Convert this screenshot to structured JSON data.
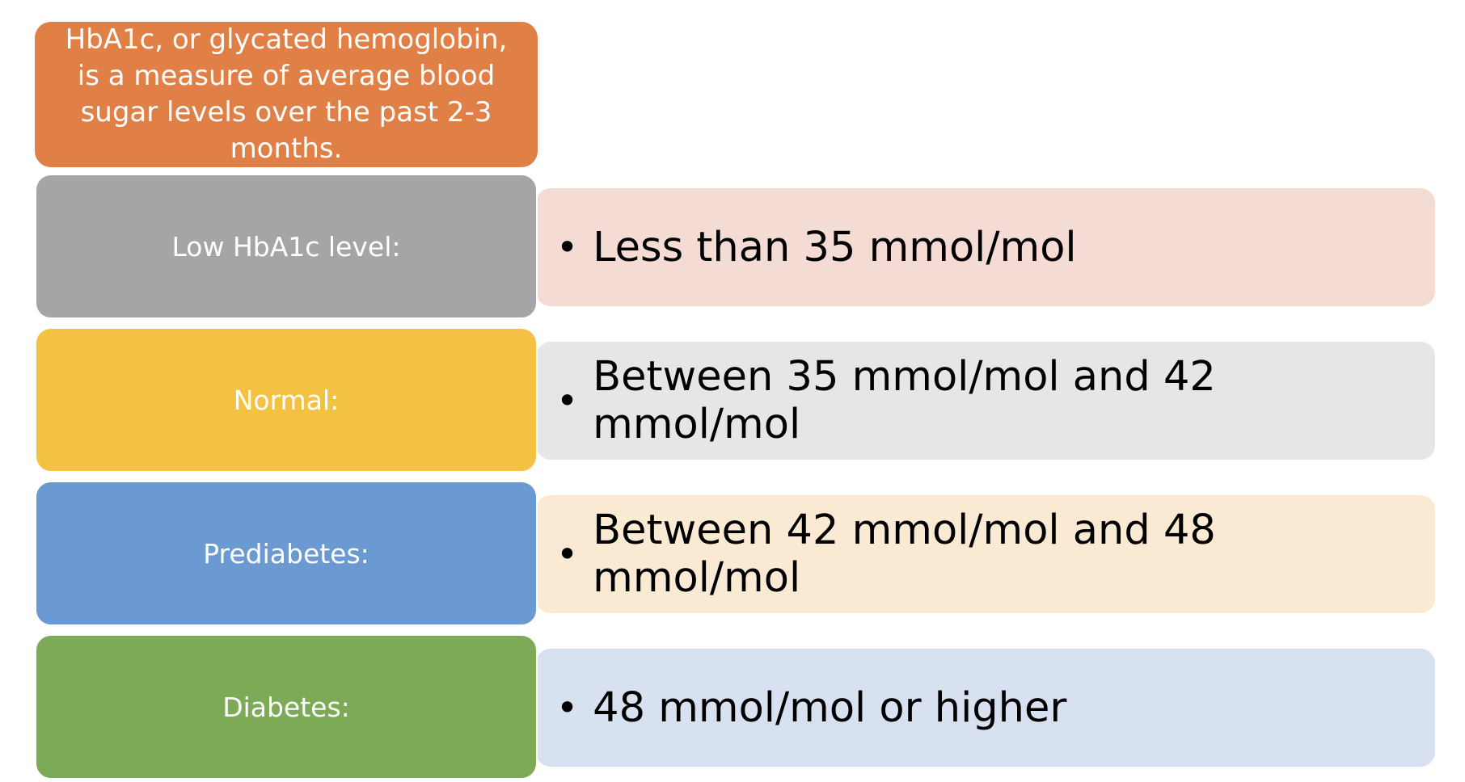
{
  "intro": {
    "text": "HbA1c, or glycated hemoglobin, is a measure of average blood sugar levels over the past 2-3 months.",
    "color": "#E07F46"
  },
  "rows": [
    {
      "label": "Low HbA1c level:",
      "detail": "Less than 35 mmol/mol",
      "label_color": "#A5A5A5",
      "detail_color": "#F4DCD4"
    },
    {
      "label": "Normal:",
      "detail": "Between 35 mmol/mol and 42 mmol/mol",
      "label_color": "#F4C242",
      "detail_color": "#E6E6E6"
    },
    {
      "label": "Prediabetes:",
      "detail": "Between 42 mmol/mol and 48 mmol/mol",
      "label_color": "#6B9AD3",
      "detail_color": "#FAEAD3"
    },
    {
      "label": "Diabetes:",
      "detail": "48 mmol/mol or higher",
      "label_color": "#7DAA56",
      "detail_color": "#D8E1EF"
    }
  ],
  "bullet_icon": "bullet-dot-icon"
}
